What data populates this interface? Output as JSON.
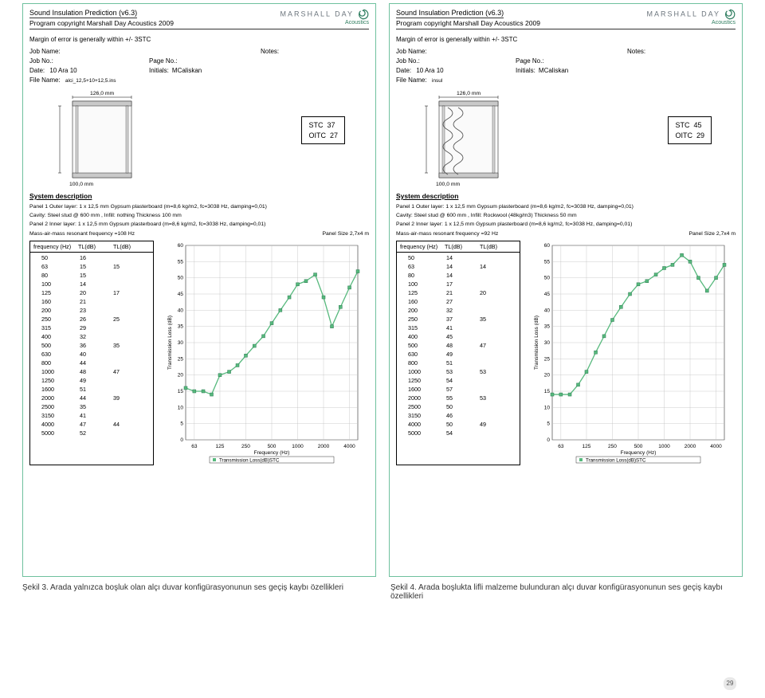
{
  "app": {
    "title": "Sound Insulation Prediction (v6.3)",
    "copyright": "Program copyright  Marshall Day Acoustics 2009",
    "logo_brand": "MARSHALL DAY",
    "logo_sub": "Acoustics",
    "margin": "Margin of error is generally within +/- 3STC",
    "labels": {
      "job_name": "Job Name:",
      "job_no": "Job No.:",
      "page_no": "Page No.:",
      "date": "Date:",
      "initials": "Initials:",
      "notes": "Notes:",
      "file_name": "File Name:"
    }
  },
  "left": {
    "date_val": "10 Ara 10",
    "initials_val": "MCaliskan",
    "file_name_val": "alci_12,5+10+12,5.ins",
    "section_width": "126,0 mm",
    "section_height": "100,0 mm",
    "stc_label": "STC",
    "stc_val": "37",
    "oitc_label": "OITC",
    "oitc_val": "27",
    "has_infill": false,
    "sys": {
      "h": "System description",
      "l1": "Panel 1 Outer layer:  1 x 12,5 mm Gypsum plasterboard  (m=8,6 kg/m2, fc=3038 Hz, damping=0,01)",
      "l2": "Cavity:  Steel stud @ 600 mm , Infill: nothing  Thickness  100 mm",
      "l3": "Panel 2 Inner layer:  1 x 12,5 mm Gypsum plasterboard  (m=8,6 kg/m2, fc=3038 Hz, damping=0,01)",
      "l4": "Mass-air-mass resonant frequency =108 Hz",
      "l5": "Panel Size 2,7x4 m"
    },
    "freq_header": {
      "f": "frequency (Hz)",
      "tl1": "TL(dB)",
      "tl3": "TL(dB)"
    },
    "rows": [
      {
        "f": "50",
        "t1": "16",
        "t3": ""
      },
      {
        "f": "63",
        "t1": "15",
        "t3": "15"
      },
      {
        "f": "80",
        "t1": "15",
        "t3": ""
      },
      {
        "f": "100",
        "t1": "14",
        "t3": ""
      },
      {
        "f": "125",
        "t1": "20",
        "t3": "17"
      },
      {
        "f": "160",
        "t1": "21",
        "t3": ""
      },
      {
        "f": "200",
        "t1": "23",
        "t3": ""
      },
      {
        "f": "250",
        "t1": "26",
        "t3": "25"
      },
      {
        "f": "315",
        "t1": "29",
        "t3": ""
      },
      {
        "f": "400",
        "t1": "32",
        "t3": ""
      },
      {
        "f": "500",
        "t1": "36",
        "t3": "35"
      },
      {
        "f": "630",
        "t1": "40",
        "t3": ""
      },
      {
        "f": "800",
        "t1": "44",
        "t3": ""
      },
      {
        "f": "1000",
        "t1": "48",
        "t3": "47"
      },
      {
        "f": "1250",
        "t1": "49",
        "t3": ""
      },
      {
        "f": "1600",
        "t1": "51",
        "t3": ""
      },
      {
        "f": "2000",
        "t1": "44",
        "t3": "39"
      },
      {
        "f": "2500",
        "t1": "35",
        "t3": ""
      },
      {
        "f": "3150",
        "t1": "41",
        "t3": ""
      },
      {
        "f": "4000",
        "t1": "47",
        "t3": "44"
      },
      {
        "f": "5000",
        "t1": "52",
        "t3": ""
      }
    ],
    "chart": {
      "ylim": [
        0,
        60
      ],
      "ytick": 5,
      "x_labels": [
        "63",
        "125",
        "250",
        "500",
        "1000",
        "2000",
        "4000"
      ],
      "y_title": "Transmission Loss (dB)",
      "x_title": "Frequency (Hz)",
      "legend": "Transmission Loss(dB)STC",
      "series": [
        16,
        15,
        15,
        14,
        20,
        21,
        23,
        26,
        29,
        32,
        36,
        40,
        44,
        48,
        49,
        51,
        44,
        35,
        41,
        47,
        52
      ],
      "freqs": [
        50,
        63,
        80,
        100,
        125,
        160,
        200,
        250,
        315,
        400,
        500,
        630,
        800,
        1000,
        1250,
        1600,
        2000,
        2500,
        3150,
        4000,
        5000
      ],
      "line_color": "#57b97d",
      "marker_color": "#57b97d",
      "grid_color": "#bfbfbf",
      "bg": "#ffffff"
    }
  },
  "right": {
    "date_val": "10 Ara 10",
    "initials_val": "MCaliskan",
    "file_name_val": "insul",
    "section_width": "126,0 mm",
    "section_height": "100,0 mm",
    "stc_label": "STC",
    "stc_val": "45",
    "oitc_label": "OITC",
    "oitc_val": "29",
    "has_infill": true,
    "sys": {
      "h": "System description",
      "l1": "Panel 1 Outer layer:  1 x 12,5 mm Gypsum plasterboard  (m=8,6 kg/m2, fc=3038 Hz, damping=0,01)",
      "l2": "Cavity:  Steel stud @ 600 mm , Infill: Rockwool (48kg/m3)  Thickness  50 mm",
      "l3": "Panel 2 Inner layer:  1 x 12,5 mm Gypsum plasterboard  (m=8,6 kg/m2, fc=3038 Hz, damping=0,01)",
      "l4": "Mass-air-mass resonant frequency =92 Hz",
      "l5": "Panel Size 2,7x4 m"
    },
    "freq_header": {
      "f": "frequency (Hz)",
      "tl1": "TL(dB)",
      "tl3": "TL(dB)"
    },
    "rows": [
      {
        "f": "50",
        "t1": "14",
        "t3": ""
      },
      {
        "f": "63",
        "t1": "14",
        "t3": "14"
      },
      {
        "f": "80",
        "t1": "14",
        "t3": ""
      },
      {
        "f": "100",
        "t1": "17",
        "t3": ""
      },
      {
        "f": "125",
        "t1": "21",
        "t3": "20"
      },
      {
        "f": "160",
        "t1": "27",
        "t3": ""
      },
      {
        "f": "200",
        "t1": "32",
        "t3": ""
      },
      {
        "f": "250",
        "t1": "37",
        "t3": "35"
      },
      {
        "f": "315",
        "t1": "41",
        "t3": ""
      },
      {
        "f": "400",
        "t1": "45",
        "t3": ""
      },
      {
        "f": "500",
        "t1": "48",
        "t3": "47"
      },
      {
        "f": "630",
        "t1": "49",
        "t3": ""
      },
      {
        "f": "800",
        "t1": "51",
        "t3": ""
      },
      {
        "f": "1000",
        "t1": "53",
        "t3": "53"
      },
      {
        "f": "1250",
        "t1": "54",
        "t3": ""
      },
      {
        "f": "1600",
        "t1": "57",
        "t3": ""
      },
      {
        "f": "2000",
        "t1": "55",
        "t3": "53"
      },
      {
        "f": "2500",
        "t1": "50",
        "t3": ""
      },
      {
        "f": "3150",
        "t1": "46",
        "t3": ""
      },
      {
        "f": "4000",
        "t1": "50",
        "t3": "49"
      },
      {
        "f": "5000",
        "t1": "54",
        "t3": ""
      }
    ],
    "chart": {
      "ylim": [
        0,
        60
      ],
      "ytick": 5,
      "x_labels": [
        "63",
        "125",
        "250",
        "500",
        "1000",
        "2000",
        "4000"
      ],
      "y_title": "Transmission Loss (dB)",
      "x_title": "Frequency (Hz)",
      "legend": "Transmission Loss(dB)STC",
      "series": [
        14,
        14,
        14,
        17,
        21,
        27,
        32,
        37,
        41,
        45,
        48,
        49,
        51,
        53,
        54,
        57,
        55,
        50,
        46,
        50,
        54
      ],
      "freqs": [
        50,
        63,
        80,
        100,
        125,
        160,
        200,
        250,
        315,
        400,
        500,
        630,
        800,
        1000,
        1250,
        1600,
        2000,
        2500,
        3150,
        4000,
        5000
      ],
      "line_color": "#57b97d",
      "marker_color": "#57b97d",
      "grid_color": "#bfbfbf",
      "bg": "#ffffff"
    }
  },
  "captions": {
    "left": "Şekil 3. Arada yalnızca boşluk olan alçı duvar konfigürasyonunun ses geçiş kaybı özellikleri",
    "right": "Şekil 4. Arada boşlukta lifli malzeme bulunduran alçı duvar konfigürasyonunun ses geçiş kaybı özellikleri"
  },
  "page_num": "29"
}
